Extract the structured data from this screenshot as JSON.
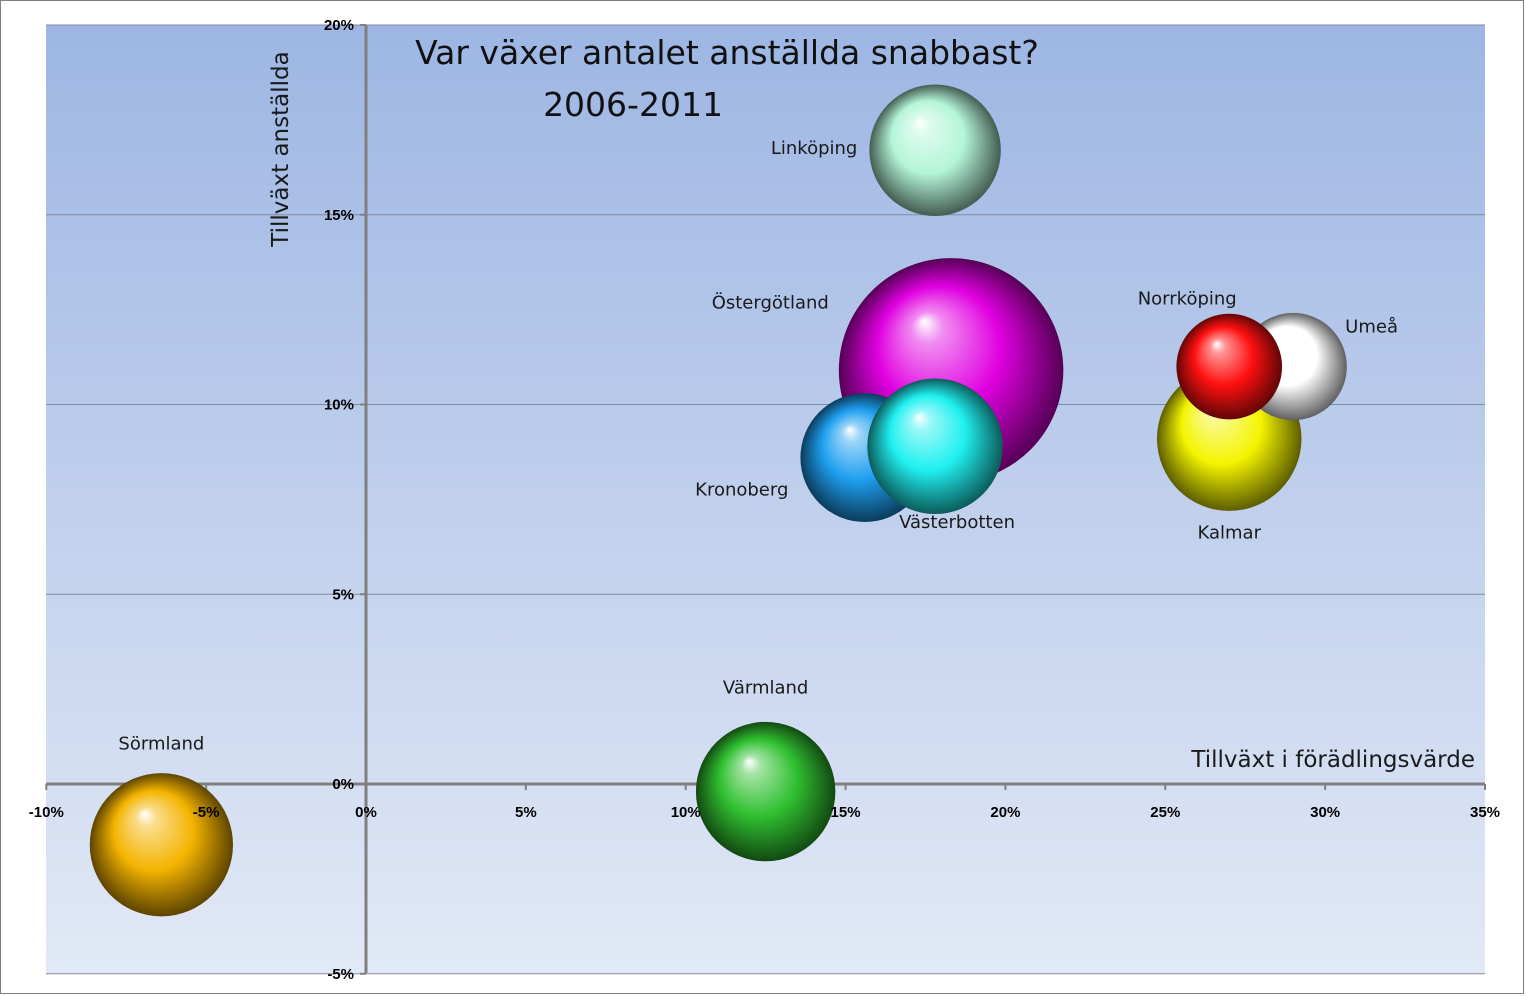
{
  "chart_data": {
    "type": "bubble",
    "title": "Var växer antalet anställda snabbast?",
    "subtitle": "2006-2011",
    "xlabel": "Tillväxt i förädlingsvärde",
    "ylabel": "Tillväxt anställda",
    "xlim": [
      -0.1,
      0.35
    ],
    "ylim": [
      -0.05,
      0.2
    ],
    "x_ticks": [
      -0.1,
      -0.05,
      0,
      0.05,
      0.1,
      0.15,
      0.2,
      0.25,
      0.3,
      0.35
    ],
    "y_ticks": [
      -0.05,
      0,
      0.05,
      0.1,
      0.15,
      0.2
    ],
    "x_tick_labels": [
      "-10%",
      "-5%",
      "0%",
      "5%",
      "10%",
      "15%",
      "20%",
      "25%",
      "30%",
      "35%"
    ],
    "y_tick_labels": [
      "-5%",
      "0%",
      "5%",
      "10%",
      "15%",
      "20%"
    ],
    "grid": "horizontal",
    "legend": "none",
    "series": [
      {
        "name": "Östergötland",
        "x": 0.183,
        "y": 0.109,
        "size": 14.0,
        "color": "#e000e0"
      },
      {
        "name": "Linköping",
        "x": 0.178,
        "y": 0.167,
        "size": 4.8,
        "color": "#b4f5d8"
      },
      {
        "name": "Kronoberg",
        "x": 0.156,
        "y": 0.086,
        "size": 4.6,
        "color": "#1e9ff0"
      },
      {
        "name": "Västerbotten",
        "x": 0.178,
        "y": 0.089,
        "size": 5.1,
        "color": "#20f0f0"
      },
      {
        "name": "Kalmar",
        "x": 0.27,
        "y": 0.091,
        "size": 5.8,
        "color": "#f4f400"
      },
      {
        "name": "Umeå",
        "x": 0.29,
        "y": 0.11,
        "size": 3.2,
        "color": "#ffffff"
      },
      {
        "name": "Norrköping",
        "x": 0.27,
        "y": 0.11,
        "size": 3.1,
        "color": "#ff1010"
      },
      {
        "name": "Värmland",
        "x": 0.125,
        "y": -0.002,
        "size": 5.4,
        "color": "#30c030"
      },
      {
        "name": "Sörmland",
        "x": -0.064,
        "y": -0.016,
        "size": 5.7,
        "color": "#f4b400"
      }
    ]
  }
}
